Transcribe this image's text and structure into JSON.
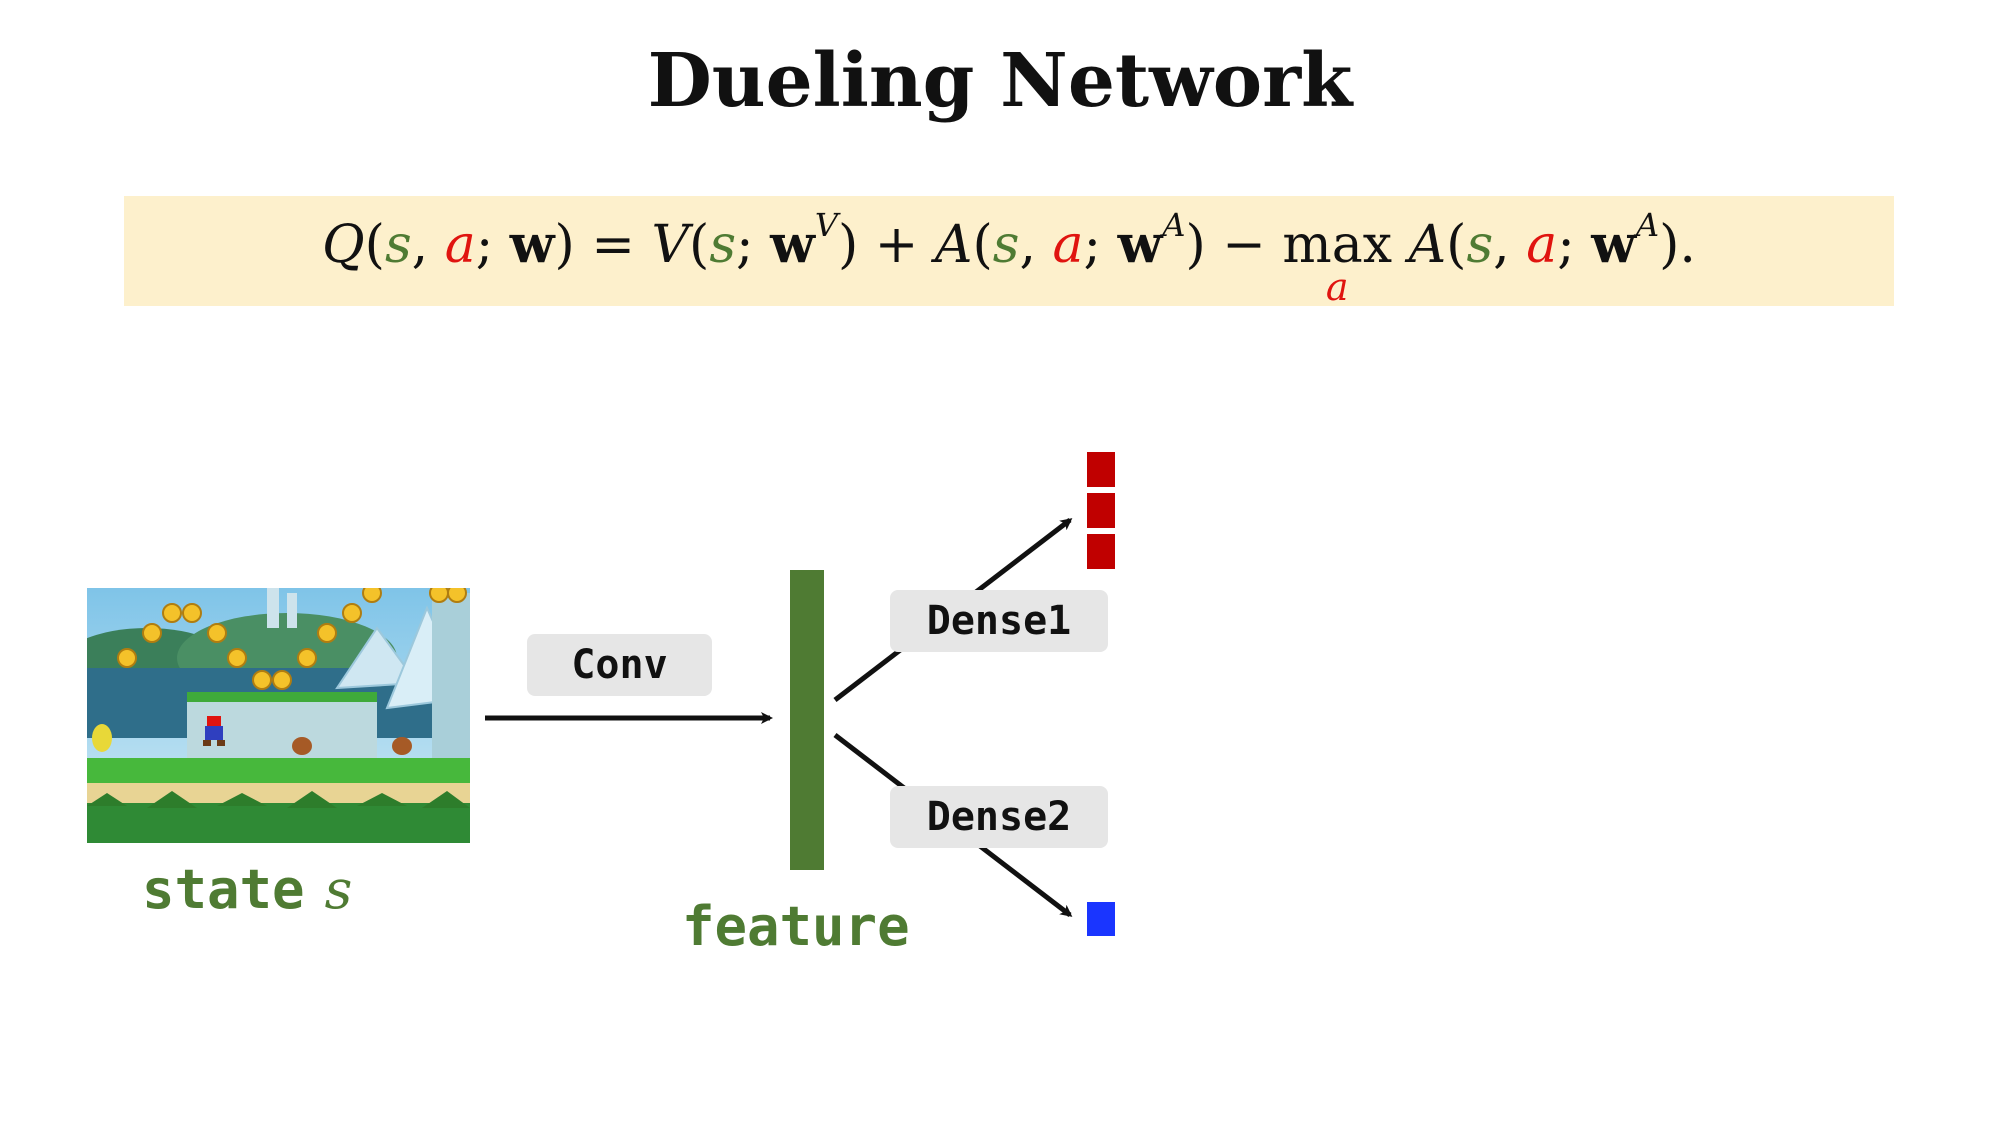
{
  "title": "Dueling Network",
  "formula": {
    "q": "Q",
    "s": "s",
    "a": "a",
    "w": "w",
    "v": "V",
    "A": "A",
    "sup_v": "V",
    "sup_a": "A",
    "max": "max",
    "max_sub": "a",
    "p_open": "(",
    "p_close": ")",
    "comma": ",",
    "semi": ";",
    "eq": "=",
    "plus": "+",
    "minus": "−",
    "end": ")."
  },
  "labels": {
    "conv": "Conv",
    "dense1": "Dense1",
    "dense2": "Dense2"
  },
  "captions": {
    "state": "state",
    "state_var": "s",
    "feature": "feature"
  },
  "colors": {
    "green": "#4f7b33",
    "red": "#e0140f",
    "dark_red": "#c00000",
    "blue": "#1a35ff",
    "formula_bg": "#fdf0cc",
    "label_bg": "#e6e6e6"
  },
  "icons": {
    "state_image": "mario-game-screenshot-icon"
  }
}
